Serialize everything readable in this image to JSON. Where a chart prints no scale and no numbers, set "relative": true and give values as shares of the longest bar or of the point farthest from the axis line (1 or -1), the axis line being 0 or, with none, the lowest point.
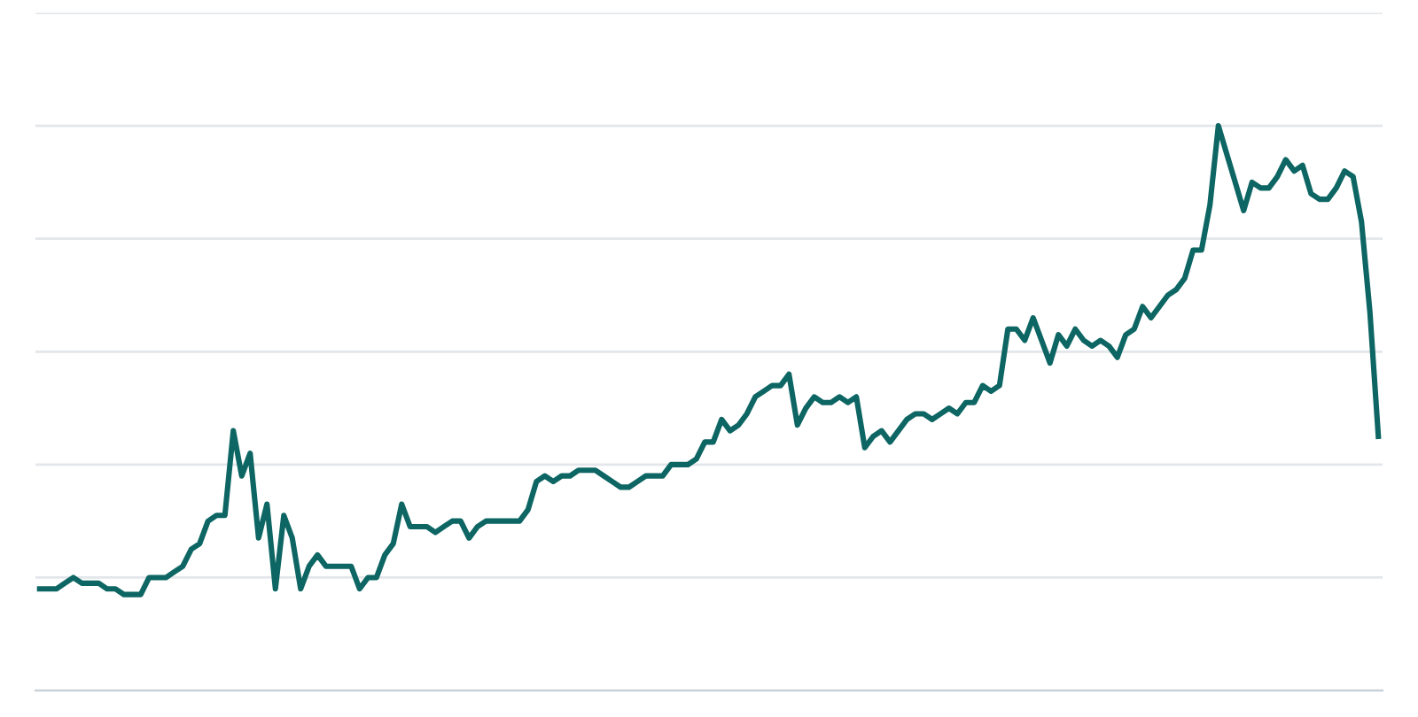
{
  "chart_data": {
    "type": "line",
    "relative": true,
    "grid": "y",
    "color": "#0d6663",
    "categories": [
      null,
      null,
      null,
      null,
      null,
      null,
      null,
      null,
      null,
      null,
      null,
      null,
      null,
      null,
      null,
      null,
      null,
      null,
      null,
      null,
      null,
      null,
      null,
      null,
      null,
      null,
      null,
      null,
      null,
      null,
      null,
      null,
      null,
      null,
      null,
      null,
      null,
      null,
      null,
      null,
      null,
      null,
      null,
      null,
      null,
      null,
      null,
      null,
      null,
      null,
      null,
      null,
      null,
      null,
      null,
      null,
      null,
      null,
      null,
      null,
      null,
      null,
      null,
      null,
      null,
      null,
      null,
      null,
      null,
      null,
      null,
      null,
      null,
      null,
      null,
      null,
      null,
      null,
      null,
      null,
      null,
      null,
      null,
      null,
      null,
      null,
      null,
      null,
      null,
      null,
      null,
      null,
      null,
      null,
      null,
      null,
      null,
      null,
      null,
      null,
      null,
      null,
      null,
      null,
      null,
      null,
      null,
      null,
      null,
      null,
      null,
      null,
      null,
      null,
      null,
      null,
      null,
      null,
      null,
      null,
      null,
      null,
      null,
      null,
      null,
      null,
      null,
      null,
      null,
      null,
      null,
      null,
      null,
      null,
      null,
      null,
      null,
      null,
      null,
      null,
      null,
      null,
      null,
      null,
      null,
      null,
      null,
      null,
      null,
      null,
      null,
      null,
      null,
      null,
      null,
      null,
      null,
      null,
      null,
      null
    ],
    "values": [
      0.18,
      0.18,
      0.18,
      0.19,
      0.2,
      0.19,
      0.19,
      0.19,
      0.18,
      0.18,
      0.17,
      0.17,
      0.17,
      0.2,
      0.2,
      0.2,
      0.21,
      0.22,
      0.25,
      0.26,
      0.3,
      0.31,
      0.31,
      0.46,
      0.38,
      0.42,
      0.27,
      0.33,
      0.18,
      0.31,
      0.27,
      0.18,
      0.22,
      0.24,
      0.22,
      0.22,
      0.22,
      0.22,
      0.18,
      0.2,
      0.2,
      0.24,
      0.26,
      0.33,
      0.29,
      0.29,
      0.29,
      0.28,
      0.29,
      0.3,
      0.3,
      0.27,
      0.29,
      0.3,
      0.3,
      0.3,
      0.3,
      0.3,
      0.32,
      0.37,
      0.38,
      0.37,
      0.38,
      0.38,
      0.39,
      0.39,
      0.39,
      0.38,
      0.37,
      0.36,
      0.36,
      0.37,
      0.38,
      0.38,
      0.38,
      0.4,
      0.4,
      0.4,
      0.41,
      0.44,
      0.44,
      0.48,
      0.46,
      0.47,
      0.49,
      0.52,
      0.53,
      0.54,
      0.54,
      0.56,
      0.47,
      0.5,
      0.52,
      0.51,
      0.51,
      0.52,
      0.51,
      0.52,
      0.43,
      0.45,
      0.46,
      0.44,
      0.46,
      0.48,
      0.49,
      0.49,
      0.48,
      0.49,
      0.5,
      0.49,
      0.51,
      0.51,
      0.54,
      0.53,
      0.54,
      0.64,
      0.64,
      0.62,
      0.66,
      0.62,
      0.58,
      0.63,
      0.61,
      0.64,
      0.62,
      0.61,
      0.62,
      0.61,
      0.59,
      0.63,
      0.64,
      0.68,
      0.66,
      0.68,
      0.7,
      0.71,
      0.73,
      0.78,
      0.78,
      0.86,
      1.0,
      0.95,
      0.9,
      0.85,
      0.9,
      0.89,
      0.89,
      0.91,
      0.94,
      0.92,
      0.93,
      0.88,
      0.87,
      0.87,
      0.89,
      0.92,
      0.91,
      0.83,
      0.67,
      0.45
    ]
  }
}
